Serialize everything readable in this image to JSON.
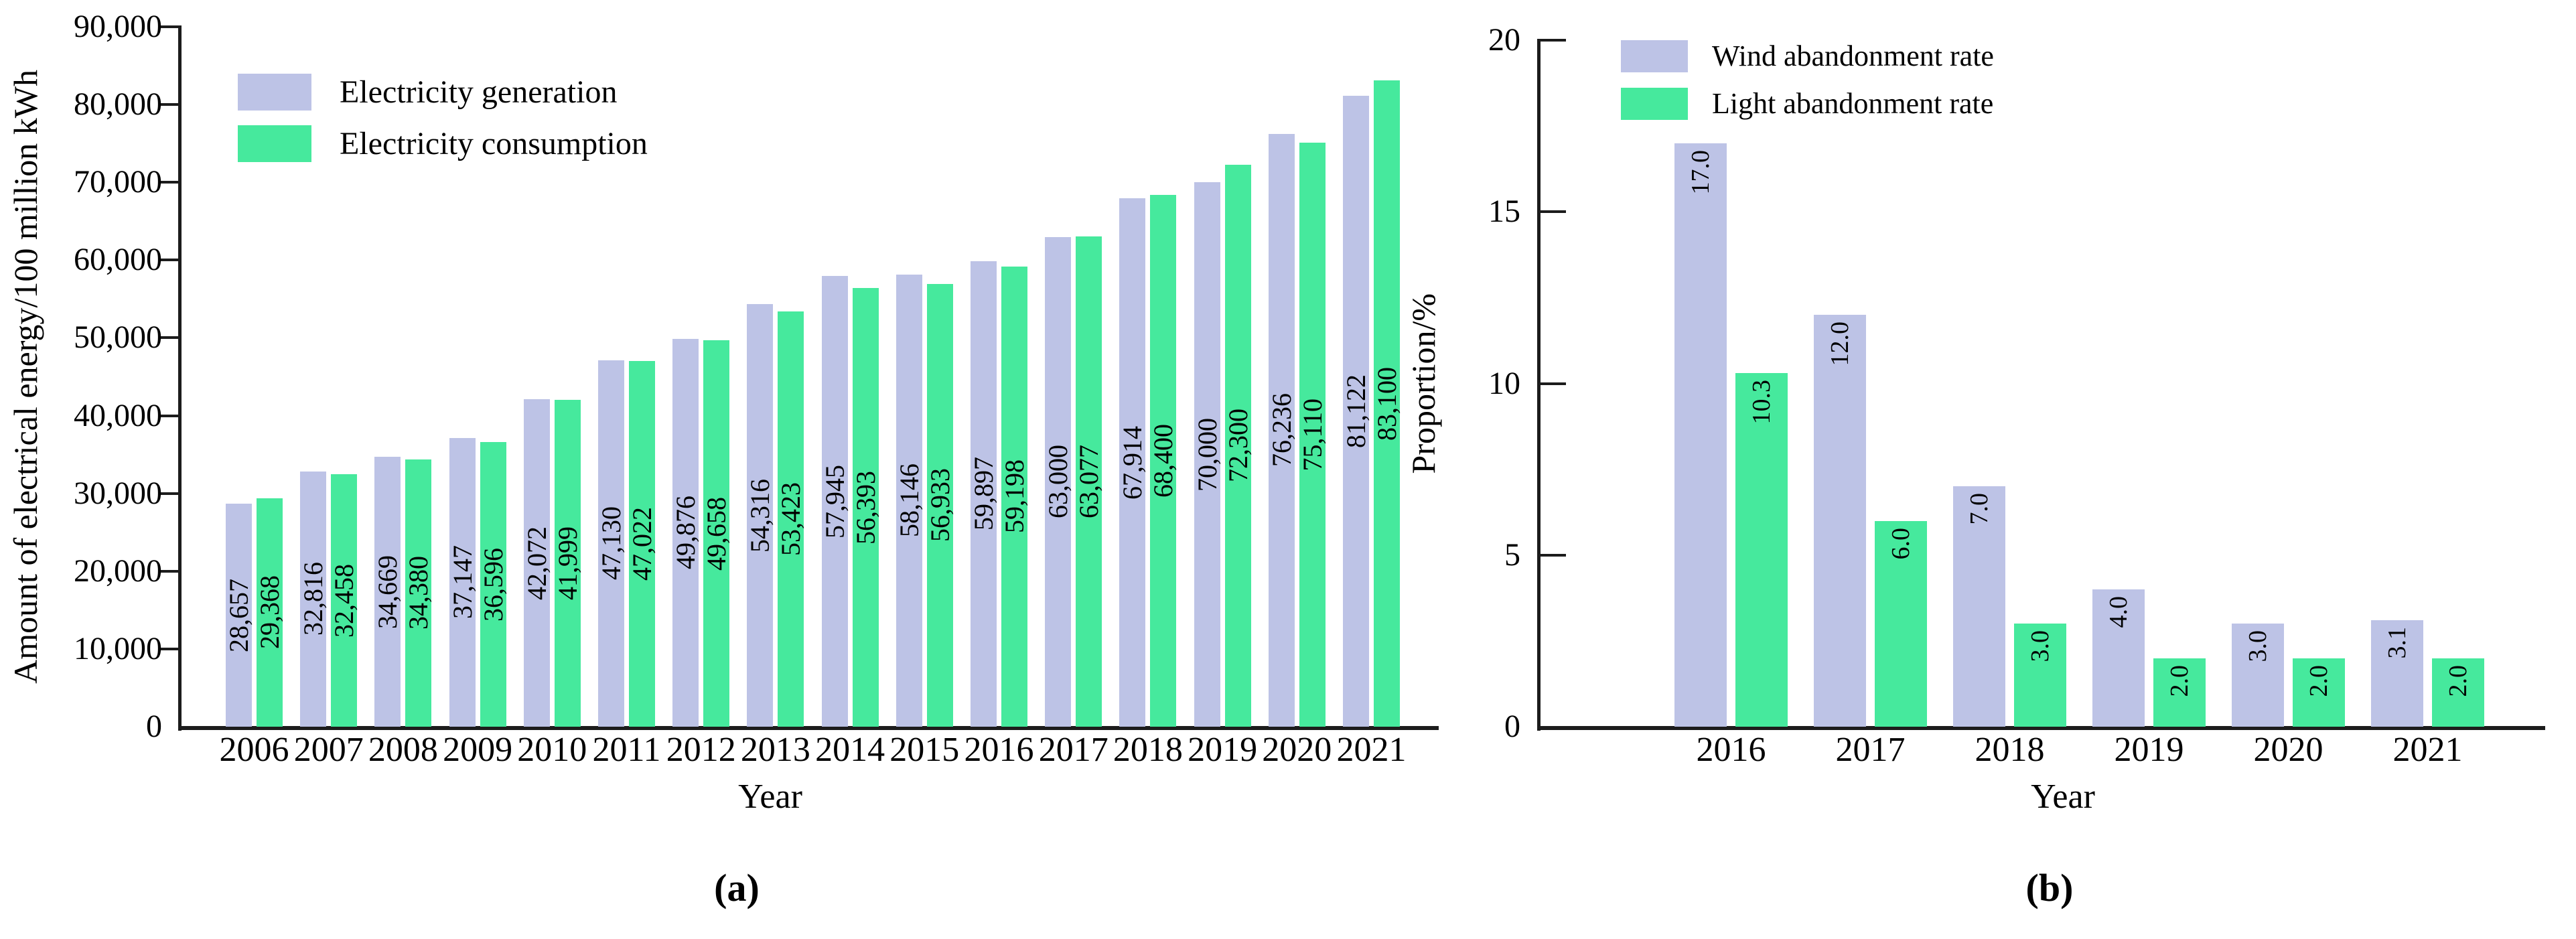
{
  "figure": {
    "caption_a": "(a)",
    "caption_b": "(b)"
  },
  "chart_data": [
    {
      "id": "a",
      "type": "bar",
      "title": "",
      "xlabel": "Year",
      "ylabel": "Amount of electrical energy/100 million kWh",
      "ylim": [
        0,
        90000
      ],
      "grid": false,
      "legend_position": "top-left-inside",
      "yticks": [
        {
          "value": 0,
          "label": "0"
        },
        {
          "value": 10000,
          "label": "10,000"
        },
        {
          "value": 20000,
          "label": "20,000"
        },
        {
          "value": 30000,
          "label": "30,000"
        },
        {
          "value": 40000,
          "label": "40,000"
        },
        {
          "value": 50000,
          "label": "50,000"
        },
        {
          "value": 60000,
          "label": "60,000"
        },
        {
          "value": 70000,
          "label": "70,000"
        },
        {
          "value": 80000,
          "label": "80,000"
        },
        {
          "value": 90000,
          "label": "90,000"
        }
      ],
      "categories": [
        "2006",
        "2007",
        "2008",
        "2009",
        "2010",
        "2011",
        "2012",
        "2013",
        "2014",
        "2015",
        "2016",
        "2017",
        "2018",
        "2019",
        "2020",
        "2021"
      ],
      "series": [
        {
          "name": "Electricity generation",
          "color": "#bdc3e6",
          "values": [
            28657,
            32816,
            34669,
            37147,
            42072,
            47130,
            49876,
            54316,
            57945,
            58146,
            59897,
            63000,
            67914,
            70000,
            76236,
            81122
          ],
          "labels": [
            "28,657",
            "32,816",
            "34,669",
            "37,147",
            "42,072",
            "47,130",
            "49,876",
            "54,316",
            "57,945",
            "58,146",
            "59,897",
            "63,000",
            "67,914",
            "70,000",
            "76,236",
            "81,122"
          ]
        },
        {
          "name": "Electricity consumption",
          "color": "#46e99d",
          "values": [
            29368,
            32458,
            34380,
            36596,
            41999,
            47022,
            49658,
            53423,
            56393,
            56933,
            59198,
            63077,
            68400,
            72300,
            75110,
            83100
          ],
          "labels": [
            "29,368",
            "32,458",
            "34,380",
            "36,596",
            "41,999",
            "47,022",
            "49,658",
            "53,423",
            "56,393",
            "56,933",
            "59,198",
            "63,077",
            "68,400",
            "72,300",
            "75,110",
            "83,100"
          ]
        }
      ],
      "caption": "(a)"
    },
    {
      "id": "b",
      "type": "bar",
      "title": "",
      "xlabel": "Year",
      "ylabel": "Proportion/%",
      "ylim": [
        0,
        20
      ],
      "grid": false,
      "legend_position": "top-left-inside",
      "yticks": [
        {
          "value": 0,
          "label": "0"
        },
        {
          "value": 5,
          "label": "5"
        },
        {
          "value": 10,
          "label": "10"
        },
        {
          "value": 15,
          "label": "15"
        },
        {
          "value": 20,
          "label": "20"
        }
      ],
      "categories": [
        "2016",
        "2017",
        "2018",
        "2019",
        "2020",
        "2021"
      ],
      "series": [
        {
          "name": "Wind abandonment rate",
          "color": "#bdc3e6",
          "values": [
            17.0,
            12.0,
            7.0,
            4.0,
            3.0,
            3.1
          ],
          "labels": [
            "17.0",
            "12.0",
            "7.0",
            "4.0",
            "3.0",
            "3.1"
          ]
        },
        {
          "name": "Light abandonment rate",
          "color": "#46e99d",
          "values": [
            10.3,
            6.0,
            3.0,
            2.0,
            2.0,
            2.0
          ],
          "labels": [
            "10.3",
            "6.0",
            "3.0",
            "2.0",
            "2.0",
            "2.0"
          ]
        }
      ],
      "caption": "(b)"
    }
  ]
}
